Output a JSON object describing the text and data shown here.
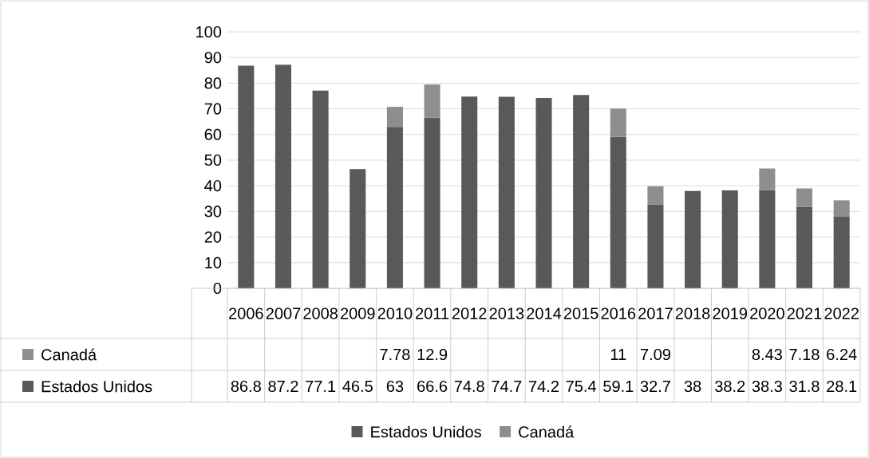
{
  "chart_data": {
    "type": "bar",
    "stacked": true,
    "categories": [
      "2006",
      "2007",
      "2008",
      "2009",
      "2010",
      "2011",
      "2012",
      "2013",
      "2014",
      "2015",
      "2016",
      "2017",
      "2018",
      "2019",
      "2020",
      "2021",
      "2022"
    ],
    "series": [
      {
        "name": "Estados Unidos",
        "color": "#595959",
        "values": [
          86.8,
          87.2,
          77.1,
          46.5,
          63,
          66.6,
          74.8,
          74.7,
          74.2,
          75.4,
          59.1,
          32.7,
          38,
          38.2,
          38.3,
          31.8,
          28.1
        ]
      },
      {
        "name": "Canadá",
        "color": "#8e8e8e",
        "values": [
          null,
          null,
          null,
          null,
          7.78,
          12.9,
          null,
          null,
          null,
          null,
          11,
          7.09,
          null,
          null,
          8.43,
          7.18,
          6.24
        ]
      }
    ],
    "ylim": [
      0,
      100
    ],
    "yticks": [
      0,
      10,
      20,
      30,
      40,
      50,
      60,
      70,
      80,
      90,
      100
    ],
    "grid": "y",
    "legend": "bottom",
    "data_labels": true
  }
}
